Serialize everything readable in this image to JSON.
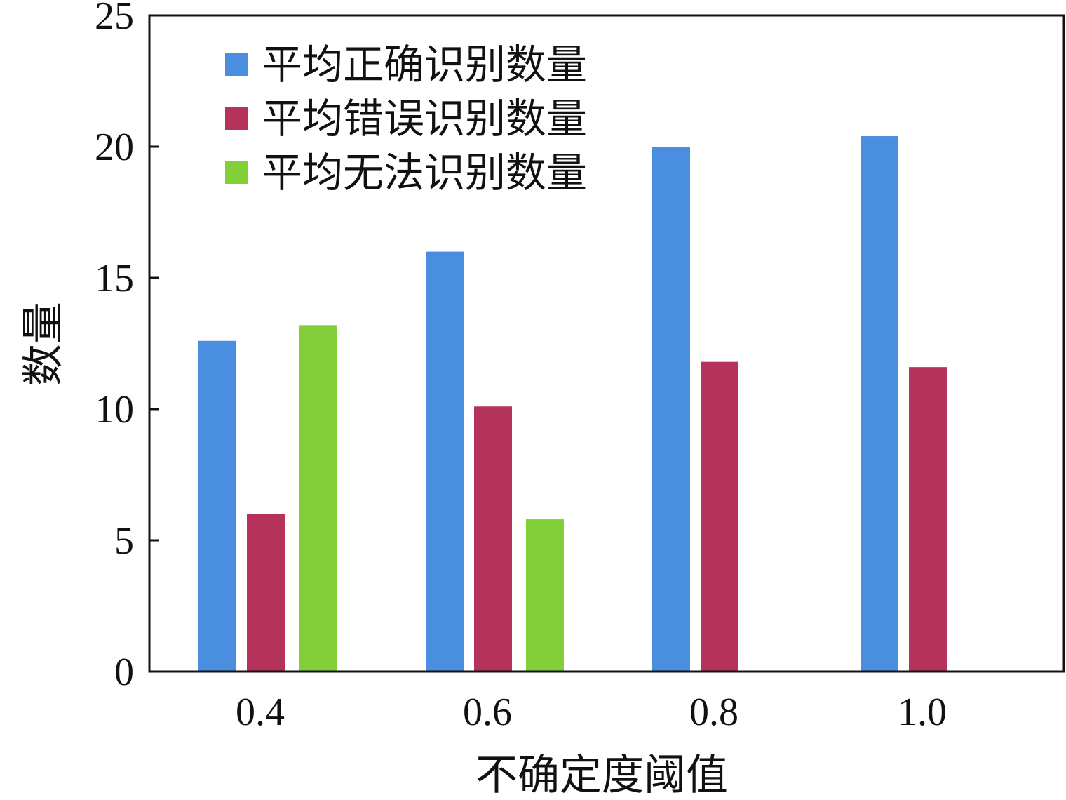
{
  "chart_data": {
    "type": "bar",
    "title": "",
    "xlabel": "不确定度阈值",
    "ylabel": "数量",
    "categories": [
      "0.4",
      "0.6",
      "0.8",
      "1.0"
    ],
    "ylim": [
      0,
      25
    ],
    "yticks": [
      0,
      5,
      10,
      15,
      20,
      25
    ],
    "grid": false,
    "legend_position": "top-left",
    "series": [
      {
        "name": "平均正确识别数量",
        "color": "#4a8ee0",
        "values": [
          12.6,
          16.0,
          20.0,
          20.4
        ]
      },
      {
        "name": "平均错误识别数量",
        "color": "#b5325a",
        "values": [
          6.0,
          10.1,
          11.8,
          11.6
        ]
      },
      {
        "name": "平均无法识别数量",
        "color": "#82cf3a",
        "values": [
          13.2,
          5.8,
          0,
          0
        ]
      }
    ]
  }
}
